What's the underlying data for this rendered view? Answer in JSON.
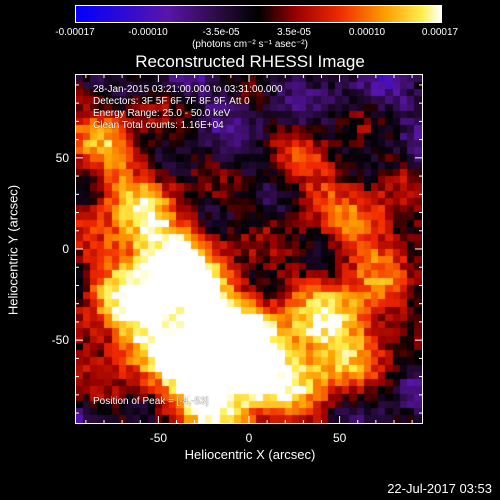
{
  "colorbar": {
    "tick_labels": [
      "-0.00017",
      "-0.00010",
      "-3.5e-05",
      "3.5e-05",
      "0.00010",
      "0.00017"
    ],
    "unit_label": "(photons cm⁻² s⁻¹ asec⁻²)",
    "range": [
      -0.00017,
      0.00017
    ]
  },
  "annotations": {
    "time": "28-Jan-2015 03:21:00.000 to 03:31:00.000",
    "detectors": "Detectors: 3F 5F 6F 7F 8F 9F, Att 0",
    "energy": "Energy Range: 25.0 - 50.0 keV",
    "clean": "Clean    Total counts: 1.16E+04",
    "peak": "Position of Peak = [-4,-53]"
  },
  "footer": {
    "date": "22-Jul-2017 03:53"
  },
  "chart_data": {
    "type": "heatmap",
    "title": "Reconstructed RHESSI Image",
    "xlabel": "Heliocentric X (arcsec)",
    "ylabel": "Heliocentric Y (arcsec)",
    "xlim": [
      -96,
      96
    ],
    "ylim": [
      -96,
      96
    ],
    "xticks": [
      -50,
      0,
      50
    ],
    "yticks": [
      -50,
      0,
      50
    ],
    "grid": false,
    "peak": [
      -4,
      -53
    ]
  }
}
